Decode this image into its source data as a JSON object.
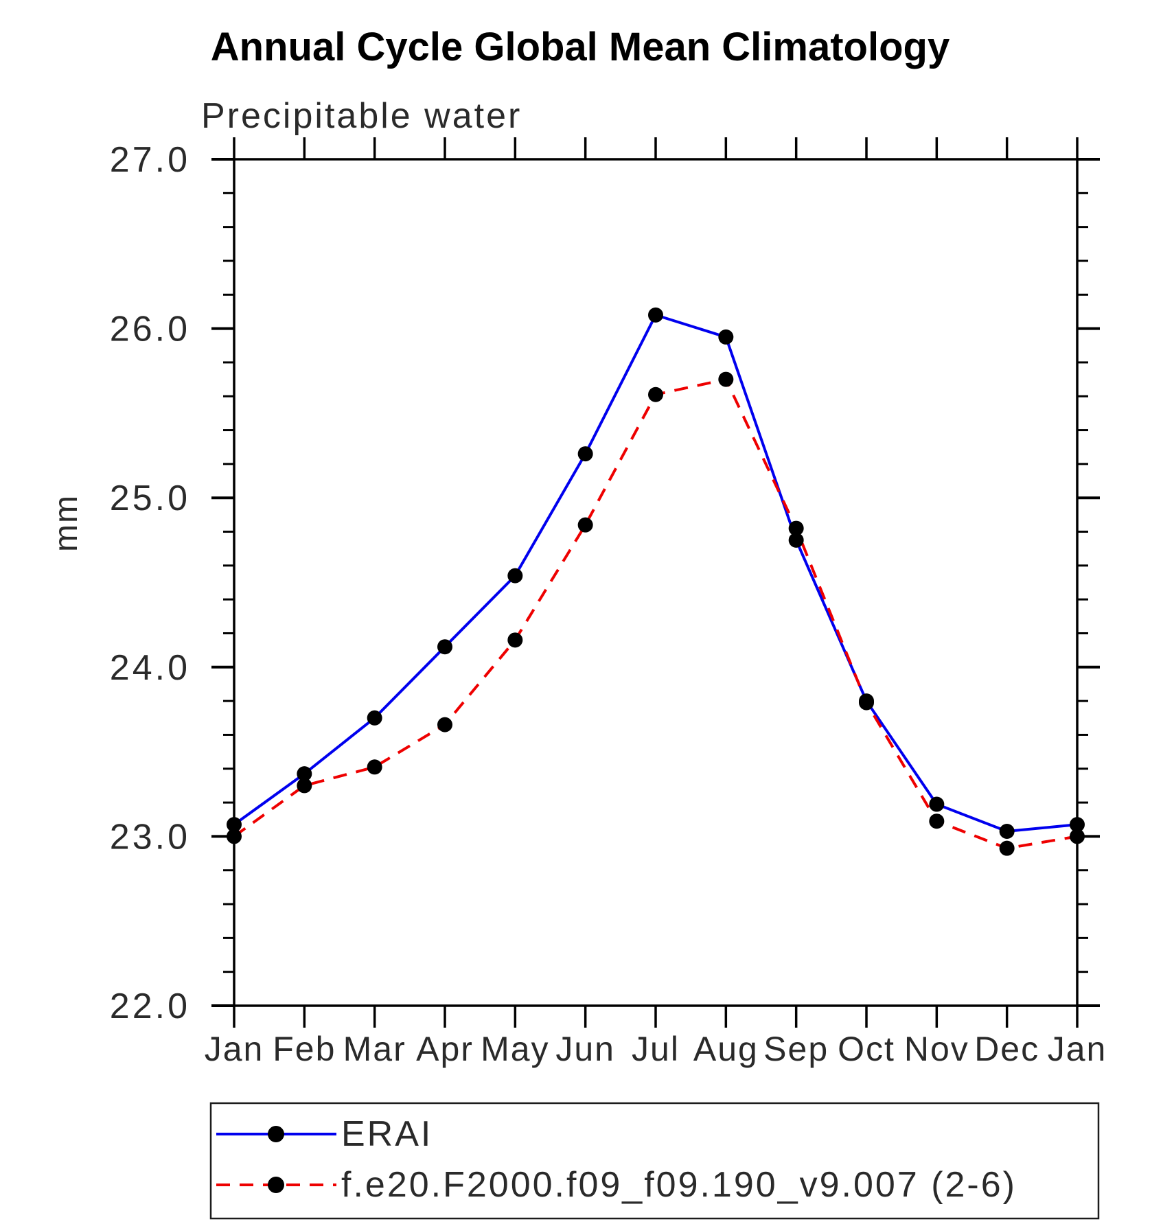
{
  "title": "Annual Cycle Global Mean Climatology",
  "subtitle": "Precipitable water",
  "y_axis": {
    "label": "mm",
    "tick_labels": [
      "22.0",
      "23.0",
      "24.0",
      "25.0",
      "26.0",
      "27.0"
    ],
    "min": 22.0,
    "max": 27.0,
    "major_step": 1.0,
    "minor_step": 0.2
  },
  "x_axis": {
    "tick_labels": [
      "Jan",
      "Feb",
      "Mar",
      "Apr",
      "May",
      "Jun",
      "Jul",
      "Aug",
      "Sep",
      "Oct",
      "Nov",
      "Dec",
      "Jan"
    ]
  },
  "colors": {
    "erai_line": "#0000ee",
    "model_line": "#ee0000",
    "marker": "#000000",
    "axis": "#000000"
  },
  "legend": {
    "entries": [
      {
        "label": "ERAI"
      },
      {
        "label": "f.e20.F2000.f09_f09.190_v9.007 (2-6)"
      }
    ]
  },
  "chart_data": {
    "type": "line",
    "title": "Annual Cycle Global Mean Climatology",
    "subtitle": "Precipitable water",
    "xlabel": "",
    "ylabel": "mm",
    "ylim": [
      22.0,
      27.0
    ],
    "y_major_ticks": [
      22.0,
      23.0,
      24.0,
      25.0,
      26.0,
      27.0
    ],
    "y_minor_step": 0.2,
    "grid": false,
    "legend_position": "bottom",
    "markers": "filled-black-circles",
    "categories": [
      "Jan",
      "Feb",
      "Mar",
      "Apr",
      "May",
      "Jun",
      "Jul",
      "Aug",
      "Sep",
      "Oct",
      "Nov",
      "Dec",
      "Jan"
    ],
    "series": [
      {
        "name": "ERAI",
        "color": "#0000ee",
        "line_style": "solid",
        "values": [
          23.07,
          23.37,
          23.7,
          24.12,
          24.54,
          25.26,
          26.08,
          25.95,
          24.75,
          23.8,
          23.19,
          23.03,
          23.07
        ]
      },
      {
        "name": "f.e20.F2000.f09_f09.190_v9.007 (2-6)",
        "color": "#ee0000",
        "line_style": "dashed",
        "values": [
          23.0,
          23.3,
          23.41,
          23.66,
          24.16,
          24.84,
          25.61,
          25.7,
          24.82,
          23.79,
          23.09,
          22.93,
          23.0
        ]
      }
    ]
  }
}
